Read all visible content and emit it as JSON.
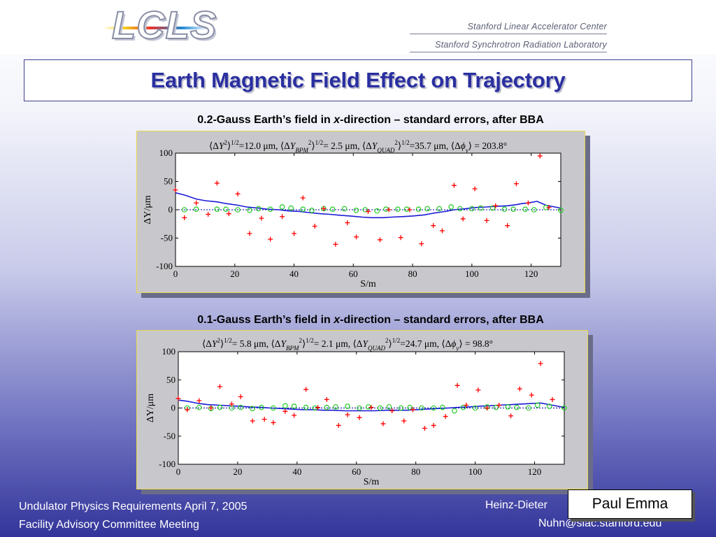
{
  "header": {
    "logo_text": "LCLS",
    "institution_1": "Stanford Linear Accelerator Center",
    "institution_2": "Stanford Synchrotron Radiation Laboratory"
  },
  "title": "Earth Magnetic Field Effect on Trajectory",
  "footer": {
    "left_line1": "Undulator Physics Requirements  April 7, 2005",
    "left_line2": "Facility Advisory Committee Meeting",
    "author_partial": "Heinz-Dieter",
    "email": "Nuhn@slac.stanford.edu",
    "name_box": "Paul Emma"
  },
  "colors": {
    "title": "#2a2fa0",
    "trajectory_line": "#1a1ad6",
    "bpm_markers": "#22cc22",
    "quad_markers": "#ff0000",
    "zero_line": "#0000aa",
    "panel_border": "#e6d94a"
  },
  "charts": [
    {
      "heading_pre": "0.2-Gauss Earth’s field in ",
      "heading_var": "x",
      "heading_post": "-direction – standard errors, after BBA",
      "stats_y": "12.0 μm",
      "stats_bpm": "2.5 μm",
      "stats_quad": "35.7 μm",
      "stats_phase": "203.8°"
    },
    {
      "heading_pre": "0.1-Gauss Earth’s field in ",
      "heading_var": "x",
      "heading_post": "-direction – standard errors, after BBA",
      "stats_y": "5.8 μm",
      "stats_bpm": "2.1 μm",
      "stats_quad": "24.7 μm",
      "stats_phase": "98.8°"
    }
  ],
  "chart_data": [
    {
      "type": "line",
      "xlabel": "S/m",
      "ylabel": "ΔY/μm",
      "xlim": [
        0,
        130
      ],
      "ylim": [
        -100,
        100
      ],
      "xticks": [
        0,
        20,
        40,
        60,
        80,
        100,
        120
      ],
      "yticks": [
        100,
        50,
        0,
        -50,
        -100
      ],
      "series": [
        {
          "kind": "line",
          "x": [
            0,
            3,
            7,
            10,
            14,
            17,
            21,
            24,
            28,
            31,
            35,
            38,
            42,
            45,
            49,
            52,
            56,
            59,
            63,
            66,
            70,
            73,
            77,
            80,
            84,
            87,
            91,
            94,
            98,
            101,
            105,
            108,
            112,
            115,
            117,
            119,
            122,
            125,
            128,
            130
          ],
          "y": [
            30,
            26,
            19,
            16,
            14,
            11,
            8,
            5,
            3,
            1,
            0,
            -2,
            -3,
            -5,
            -7,
            -8,
            -10,
            -11,
            -13,
            -14,
            -14,
            -13,
            -12,
            -11,
            -9,
            -6,
            -3,
            0,
            2,
            4,
            5,
            6,
            7,
            9,
            11,
            12,
            15,
            8,
            5,
            3
          ]
        },
        {
          "kind": "scatter",
          "marker": "circle",
          "x": [
            3,
            7,
            14,
            17,
            21,
            25,
            28,
            32,
            36,
            39,
            43,
            46,
            50,
            53,
            57,
            61,
            64,
            68,
            71,
            75,
            78,
            82,
            85,
            89,
            93,
            96,
            100,
            103,
            107,
            111,
            114,
            118,
            121,
            125,
            130
          ],
          "y": [
            0,
            1,
            1,
            1,
            0,
            -1,
            2,
            1,
            5,
            3,
            1,
            -1,
            2,
            1,
            2,
            -1,
            0,
            -2,
            1,
            1,
            1,
            1,
            2,
            2,
            5,
            2,
            2,
            3,
            3,
            1,
            1,
            1,
            0,
            4,
            -1
          ]
        },
        {
          "kind": "scatter",
          "marker": "plus",
          "x": [
            0,
            3,
            7,
            11,
            14,
            18,
            21,
            25,
            29,
            32,
            36,
            40,
            43,
            47,
            50,
            54,
            58,
            61,
            65,
            69,
            72,
            76,
            79,
            83,
            87,
            90,
            94,
            97,
            101,
            105,
            108,
            112,
            115,
            119,
            123,
            126
          ],
          "y": [
            35,
            -14,
            12,
            -8,
            47,
            -7,
            28,
            -42,
            -15,
            -52,
            -12,
            -42,
            21,
            -29,
            2,
            -61,
            -23,
            -48,
            -3,
            -53,
            0,
            -49,
            0,
            -60,
            -28,
            -37,
            43,
            -16,
            37,
            -19,
            7,
            -28,
            46,
            12,
            95,
            4
          ]
        }
      ]
    },
    {
      "type": "line",
      "xlabel": "S/m",
      "ylabel": "ΔY/μm",
      "xlim": [
        0,
        130
      ],
      "ylim": [
        -100,
        100
      ],
      "xticks": [
        0,
        20,
        40,
        60,
        80,
        100,
        120
      ],
      "yticks": [
        100,
        50,
        0,
        -50,
        -100
      ],
      "series": [
        {
          "kind": "line",
          "x": [
            0,
            3,
            7,
            10,
            14,
            17,
            21,
            24,
            28,
            31,
            35,
            38,
            42,
            45,
            49,
            52,
            56,
            59,
            63,
            66,
            70,
            73,
            77,
            80,
            84,
            87,
            91,
            94,
            98,
            101,
            105,
            108,
            112,
            115,
            119,
            122,
            126,
            130
          ],
          "y": [
            14,
            12,
            8,
            6,
            5,
            4,
            3,
            2,
            1,
            0,
            -1,
            -2,
            -3,
            -3,
            -4,
            -4,
            -5,
            -5,
            -5,
            -5,
            -4,
            -4,
            -4,
            -3,
            -2,
            -1,
            0,
            1,
            2,
            3,
            4,
            5,
            6,
            7,
            8,
            9,
            5,
            1
          ]
        },
        {
          "kind": "scatter",
          "marker": "circle",
          "x": [
            3,
            7,
            11,
            14,
            18,
            21,
            25,
            28,
            32,
            36,
            39,
            43,
            46,
            50,
            53,
            57,
            61,
            64,
            68,
            71,
            75,
            78,
            82,
            86,
            89,
            93,
            96,
            100,
            104,
            107,
            111,
            114,
            118,
            121,
            125,
            130
          ],
          "y": [
            0,
            1,
            -1,
            1,
            0,
            1,
            -1,
            1,
            0,
            4,
            3,
            1,
            0,
            1,
            2,
            3,
            0,
            2,
            0,
            2,
            0,
            1,
            0,
            0,
            1,
            -5,
            1,
            0,
            2,
            1,
            2,
            1,
            0,
            5,
            3,
            0
          ]
        },
        {
          "kind": "scatter",
          "marker": "plus",
          "x": [
            0,
            3,
            7,
            11,
            14,
            18,
            21,
            25,
            29,
            32,
            36,
            39,
            43,
            47,
            50,
            54,
            57,
            61,
            65,
            69,
            72,
            76,
            79,
            83,
            86,
            90,
            94,
            97,
            101,
            104,
            108,
            112,
            115,
            119,
            122,
            126
          ],
          "y": [
            17,
            -3,
            13,
            0,
            38,
            7,
            20,
            -23,
            -20,
            -26,
            -6,
            -13,
            33,
            1,
            15,
            -31,
            -12,
            -17,
            1,
            -28,
            -5,
            -23,
            -3,
            -36,
            -31,
            -15,
            40,
            5,
            32,
            0,
            5,
            -14,
            34,
            23,
            79,
            15
          ]
        }
      ]
    }
  ]
}
